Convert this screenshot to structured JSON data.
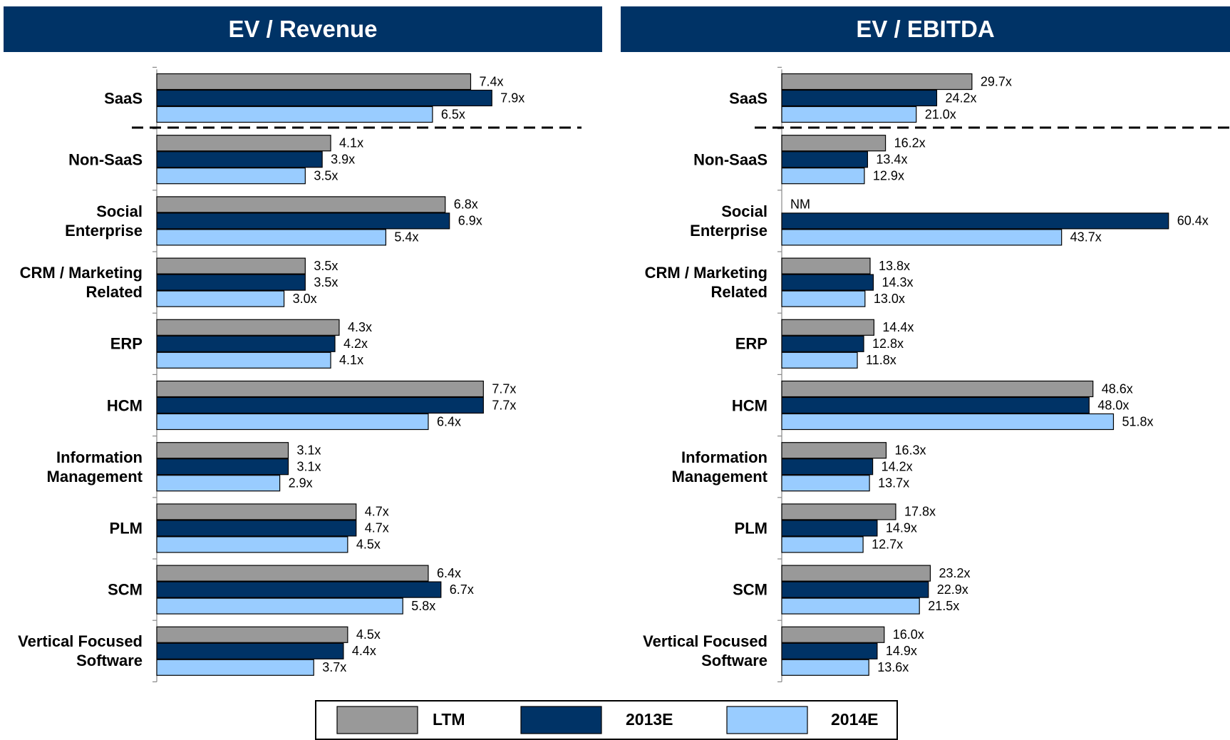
{
  "chart_data": [
    {
      "type": "bar",
      "orientation": "horizontal",
      "title": "EV / Revenue",
      "categories": [
        "SaaS",
        "Non-SaaS",
        "Social\nEnterprise",
        "CRM / Marketing\nRelated",
        "ERP",
        "HCM",
        "Information\nManagement",
        "PLM",
        "SCM",
        "Vertical Focused\nSoftware"
      ],
      "series": [
        {
          "name": "LTM",
          "color": "#999999",
          "values": [
            7.4,
            4.1,
            6.8,
            3.5,
            4.3,
            7.7,
            3.1,
            4.7,
            6.4,
            4.5
          ],
          "value_labels": [
            "7.4x",
            "4.1x",
            "6.8x",
            "3.5x",
            "4.3x",
            "7.7x",
            "3.1x",
            "4.7x",
            "6.4x",
            "4.5x"
          ]
        },
        {
          "name": "2013E",
          "color": "#003366",
          "values": [
            7.9,
            3.9,
            6.9,
            3.5,
            4.2,
            7.7,
            3.1,
            4.7,
            6.7,
            4.4
          ],
          "value_labels": [
            "7.9x",
            "3.9x",
            "6.9x",
            "3.5x",
            "4.2x",
            "7.7x",
            "3.1x",
            "4.7x",
            "6.7x",
            "4.4x"
          ]
        },
        {
          "name": "2014E",
          "color": "#99ccff",
          "values": [
            6.5,
            3.5,
            5.4,
            3.0,
            4.1,
            6.4,
            2.9,
            4.5,
            5.8,
            3.7
          ],
          "value_labels": [
            "6.5x",
            "3.5x",
            "5.4x",
            "3.0x",
            "4.1x",
            "6.4x",
            "2.9x",
            "4.5x",
            "5.8x",
            "3.7x"
          ]
        }
      ],
      "xlim": [
        0,
        10.5
      ]
    },
    {
      "type": "bar",
      "orientation": "horizontal",
      "title": "EV / EBITDA",
      "categories": [
        "SaaS",
        "Non-SaaS",
        "Social\nEnterprise",
        "CRM / Marketing\nRelated",
        "ERP",
        "HCM",
        "Information\nManagement",
        "PLM",
        "SCM",
        "Vertical Focused\nSoftware"
      ],
      "series": [
        {
          "name": "LTM",
          "color": "#999999",
          "values": [
            29.7,
            16.2,
            null,
            13.8,
            14.4,
            48.6,
            16.3,
            17.8,
            23.2,
            16.0
          ],
          "value_labels": [
            "29.7x",
            "16.2x",
            "NM",
            "13.8x",
            "14.4x",
            "48.6x",
            "16.3x",
            "17.8x",
            "23.2x",
            "16.0x"
          ]
        },
        {
          "name": "2013E",
          "color": "#003366",
          "values": [
            24.2,
            13.4,
            60.4,
            14.3,
            12.8,
            48.0,
            14.2,
            14.9,
            22.9,
            14.9
          ],
          "value_labels": [
            "24.2x",
            "13.4x",
            "60.4x",
            "14.3x",
            "12.8x",
            "48.0x",
            "14.2x",
            "14.9x",
            "22.9x",
            "14.9x"
          ]
        },
        {
          "name": "2014E",
          "color": "#99ccff",
          "values": [
            21.0,
            12.9,
            43.7,
            13.0,
            11.8,
            51.8,
            13.7,
            12.7,
            21.5,
            13.6
          ],
          "value_labels": [
            "21.0x",
            "12.9x",
            "43.7x",
            "13.0x",
            "11.8x",
            "51.8x",
            "13.7x",
            "12.7x",
            "21.5x",
            "13.6x"
          ]
        }
      ],
      "xlim": [
        0,
        70
      ]
    }
  ]
}
